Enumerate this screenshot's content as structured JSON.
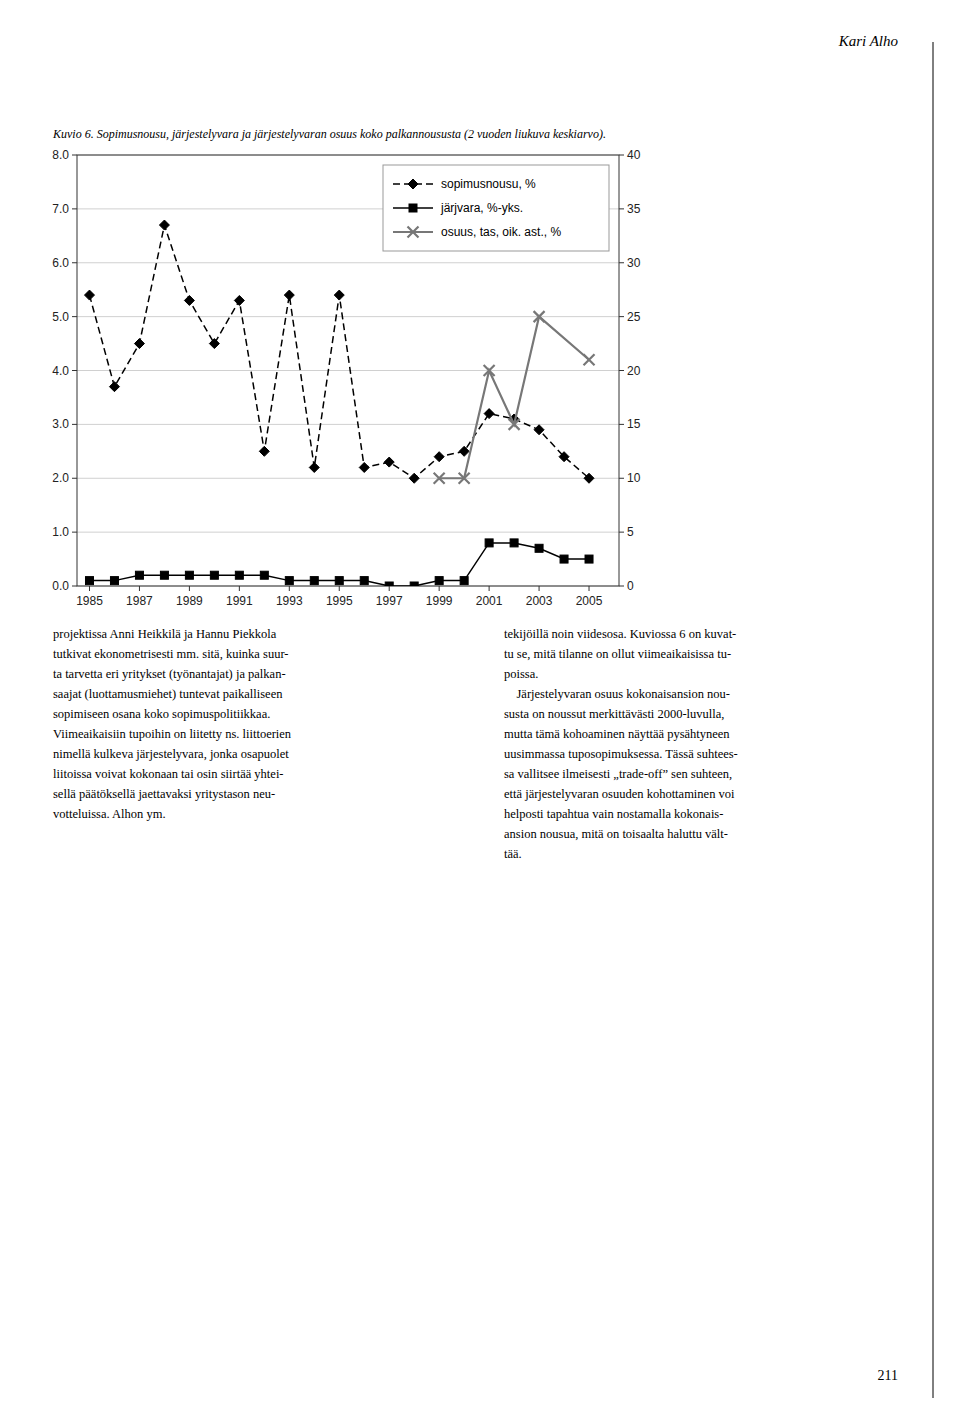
{
  "chart_data": {
    "type": "line",
    "title": "Kuvio 6. Sopimusnousu, järjestelyvara ja järjestelyvaran osuus koko palkannoususta (2 vuoden liukuva keskiarvo).",
    "annotations": [
      "Kari Alho",
      "projektissa Anni Heikkilä ja Hannu Piekkola\ntutkivat ekonometrisesti mm. sitä, kuinka suur-\nta tarvetta eri yritykset (työnantajat) ja palkan-\nsaajat (luottamusmiehet) tuntevat paikalliseen\nsopimiseen osana koko sopimuspolitiikkaa.\nViimeaikaisiin tupoihin on liitetty ns. liittoerien\nnimellä kulkeva järjestelyvara, jonka osapuolet\nliitoissa voivat kokonaan tai osin siirtää yhtei-\nsellä päätöksellä jaettavaksi yritystason neu-\nvotteluissa. Alhon ym.",
      "tekijöillä noin viidesosa. Kuviossa 6 on kuvat-\ntu se, mitä tilanne on ollut viimeaikaisissa tu-\npoissa.\n    Järjestelyvaran osuus kokonaisansion nou-\nsusta on noussut merkittävästi 2000-luvulla,\nmutta tämä kohoaminen näyttää pysähtyneen\nuusimmassa tuposopimuksessa. Tässä suhtees-\nsa vallitsee ilmeisesti „trade-off” sen suhteen,\nettä järjestelyvaran osuuden kohottaminen voi\nhelposti tapahtua vain nostamalla kokonais-\nansion nousua, mitä on toisaalta haluttu vält-\ntää.",
      "211"
    ],
    "series": [
      {
        "name": "sopimusnousu, %",
        "color": "#000000",
        "marker": "diamond",
        "line_style": "dashed",
        "x": [
          1985,
          1986,
          1987,
          1988,
          1989,
          1990,
          1991,
          1992,
          1993,
          1994,
          1995,
          1996,
          1997,
          1998,
          1999,
          2000,
          2001,
          2002,
          2003,
          2004,
          2005
        ],
        "values": [
          5.4,
          3.7,
          4.5,
          6.7,
          5.3,
          4.5,
          5.3,
          2.5,
          5.4,
          2.2,
          5.4,
          2.2,
          2.3,
          2.0,
          2.4,
          2.5,
          3.2,
          3.1,
          2.9,
          2.4,
          2.0
        ]
      },
      {
        "name": "järjvara, %-yks.",
        "color": "#000000",
        "marker": "square",
        "line_style": "solid",
        "x": [
          1985,
          1986,
          1987,
          1988,
          1989,
          1990,
          1991,
          1992,
          1993,
          1994,
          1995,
          1996,
          1997,
          1998,
          1999,
          2000,
          2001,
          2002,
          2003,
          2004,
          2005
        ],
        "values": [
          0.1,
          0.1,
          0.2,
          0.2,
          0.2,
          0.2,
          0.2,
          0.2,
          0.1,
          0.1,
          0.1,
          0.1,
          0.0,
          0.0,
          0.1,
          0.1,
          0.8,
          0.8,
          0.7,
          0.5,
          0.5
        ]
      },
      {
        "name": "osuus, tas, oik. ast., %",
        "color": "#777777",
        "marker": "x",
        "line_style": "solid",
        "axis": "y2",
        "x": [
          1999,
          2000,
          2001,
          2002,
          2003,
          2005
        ],
        "values": [
          10.0,
          10.0,
          20.0,
          15.0,
          25.0,
          21.0
        ]
      }
    ],
    "xlim": [
      1984.5,
      2006.2
    ],
    "xticks": [
      1985,
      1987,
      1989,
      1991,
      1993,
      1995,
      1997,
      1999,
      2001,
      2003,
      2005
    ],
    "ylim": [
      0.0,
      8.0
    ],
    "yticks": [
      {
        "value": 0.0,
        "label": "0.0"
      },
      {
        "value": 1.0,
        "label": "1.0"
      },
      {
        "value": 2.0,
        "label": "2.0"
      },
      {
        "value": 3.0,
        "label": "3.0"
      },
      {
        "value": 4.0,
        "label": "4.0"
      },
      {
        "value": 5.0,
        "label": "5.0"
      },
      {
        "value": 6.0,
        "label": "6.0"
      },
      {
        "value": 7.0,
        "label": "7.0"
      },
      {
        "value": 8.0,
        "label": "8.0"
      }
    ],
    "y2lim": [
      0,
      40
    ],
    "y2ticks": [
      0,
      5,
      10,
      15,
      20,
      25,
      30,
      35,
      40
    ],
    "grid": true,
    "legend": "upper right"
  }
}
